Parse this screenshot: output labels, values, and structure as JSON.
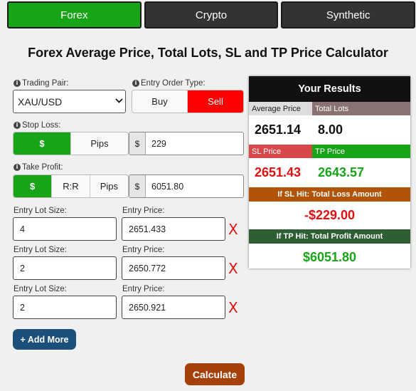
{
  "tabs": [
    {
      "label": "Forex",
      "active": true
    },
    {
      "label": "Crypto",
      "active": false
    },
    {
      "label": "Synthetic",
      "active": false
    }
  ],
  "page_title": "Forex Average Price, Total Lots, SL and TP Price Calculator",
  "info_icon_glyph": "i",
  "trading_pair": {
    "label": "Trading Pair:",
    "value": "XAU/USD"
  },
  "entry_order_type": {
    "label": "Entry Order Type:",
    "options": [
      "Buy",
      "Sell"
    ],
    "selected": "Sell"
  },
  "stop_loss": {
    "label": "Stop Loss:",
    "modes": [
      "$",
      "Pips"
    ],
    "selected_mode": "$",
    "currency_addon": "$",
    "value": "229"
  },
  "take_profit": {
    "label": "Take Profit:",
    "modes": [
      "$",
      "R:R",
      "Pips"
    ],
    "selected_mode": "$",
    "currency_addon": "$",
    "value": "6051.80"
  },
  "entries": [
    {
      "lot_label": "Entry Lot Size:",
      "lot": "4",
      "price_label": "Entry Price:",
      "price": "2651.433"
    },
    {
      "lot_label": "Entry Lot Size:",
      "lot": "2",
      "price_label": "Entry Price:",
      "price": "2650.772"
    },
    {
      "lot_label": "Entry Lot Size:",
      "lot": "2",
      "price_label": "Entry Price:",
      "price": "2650.921"
    }
  ],
  "delete_glyph": "X",
  "add_more_label": "+ Add More",
  "calculate_label": "Calculate",
  "results": {
    "title": "Your Results",
    "average_price_label": "Average Price",
    "average_price": "2651.14",
    "total_lots_label": "Total Lots",
    "total_lots": "8.00",
    "sl_price_label": "SL Price",
    "sl_price": "2651.43",
    "tp_price_label": "TP Price",
    "tp_price": "2643.57",
    "sl_hit_label": "If SL Hit: Total Loss Amount",
    "sl_hit_value": "-$229.00",
    "tp_hit_label": "If TP Hit: Total Profit Amount",
    "tp_hit_value": "$6051.80"
  },
  "colors": {
    "accent_green": "#18a418",
    "sell_red": "#ff0000",
    "loss_red": "#e01010",
    "loss_header_orange": "#b15408",
    "profit_header_green": "#2e5e34",
    "add_more_blue": "#1c4f7a",
    "calculate_brown": "#a5400b"
  }
}
